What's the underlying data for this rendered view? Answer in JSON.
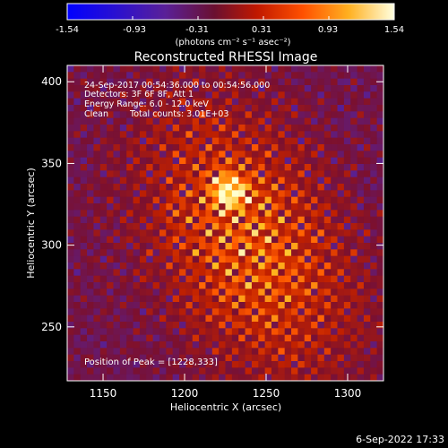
{
  "colorbar": {
    "ticks": [
      "-1.54",
      "-0.93",
      "-0.31",
      "0.31",
      "0.93",
      "1.54"
    ],
    "units_text": "(photons cm⁻² s⁻¹ asec⁻²)",
    "min": -1.54,
    "max": 1.54,
    "colormap": [
      "#0000ff",
      "#3a10c0",
      "#5a2090",
      "#7a1030",
      "#c02000",
      "#ff5a00",
      "#ffc020",
      "#ffffd0"
    ]
  },
  "title": "Reconstructed RHESSI Image",
  "info": {
    "time_range": "24-Sep-2017 00:54:36.000 to 00:54:56.000",
    "detectors": "Detectors: 3F 6F 8F, Att 1",
    "energy": "Energy Range: 6.0 - 12.0 keV",
    "method": "Clean",
    "counts": "Total counts: 3.01E+03"
  },
  "peak": "Position of Peak = [1228,333]",
  "footer_date": "6-Sep-2022 17:33",
  "chart_data": {
    "type": "heatmap",
    "title": "Reconstructed RHESSI Image",
    "xlabel": "Heliocentric X (arcsec)",
    "ylabel": "Heliocentric Y (arcsec)",
    "xlim": [
      1128,
      1322
    ],
    "ylim": [
      217,
      410
    ],
    "x_ticks": [
      1150,
      1200,
      1250,
      1300
    ],
    "y_ticks": [
      250,
      300,
      350,
      400
    ],
    "peak_position": [
      1228,
      333
    ],
    "value_range": [
      -1.54,
      1.54
    ]
  }
}
